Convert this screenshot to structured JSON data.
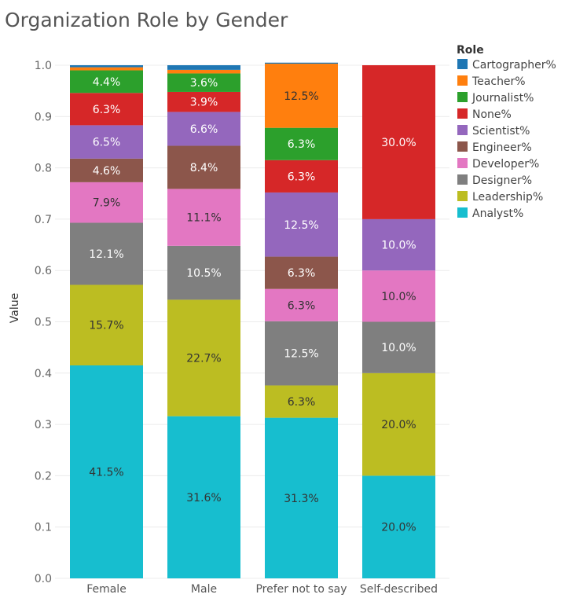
{
  "chart_data": {
    "type": "bar",
    "stacked": true,
    "title": "Organization Role by Gender",
    "xlabel": "",
    "ylabel": "Value",
    "ylim": [
      0,
      1
    ],
    "yticks": [
      "0.0",
      "0.1",
      "0.2",
      "0.3",
      "0.4",
      "0.5",
      "0.6",
      "0.7",
      "0.8",
      "0.9",
      "1.0"
    ],
    "categories": [
      "Female",
      "Male",
      "Prefer not to say",
      "Self-described"
    ],
    "legend_title": "Role",
    "legend_position": "right",
    "legend_items": [
      "Cartographer%",
      "Teacher%",
      "Journalist%",
      "None%",
      "Scientist%",
      "Engineer%",
      "Developer%",
      "Designer%",
      "Leadership%",
      "Analyst%"
    ],
    "series": [
      {
        "name": "Analyst%",
        "color": "#17becf",
        "label_color": "#333333",
        "values": [
          0.415,
          0.316,
          0.313,
          0.2
        ],
        "labels": [
          "41.5%",
          "31.6%",
          "31.3%",
          "20.0%"
        ]
      },
      {
        "name": "Leadership%",
        "color": "#bcbd22",
        "label_color": "#333333",
        "values": [
          0.157,
          0.227,
          0.063,
          0.2
        ],
        "labels": [
          "15.7%",
          "22.7%",
          "6.3%",
          "20.0%"
        ]
      },
      {
        "name": "Designer%",
        "color": "#7f7f7f",
        "label_color": "#ffffff",
        "values": [
          0.121,
          0.105,
          0.125,
          0.1
        ],
        "labels": [
          "12.1%",
          "10.5%",
          "12.5%",
          "10.0%"
        ]
      },
      {
        "name": "Developer%",
        "color": "#e377c2",
        "label_color": "#333333",
        "values": [
          0.079,
          0.111,
          0.063,
          0.1
        ],
        "labels": [
          "7.9%",
          "11.1%",
          "6.3%",
          "10.0%"
        ]
      },
      {
        "name": "Engineer%",
        "color": "#8c564b",
        "label_color": "#ffffff",
        "values": [
          0.046,
          0.084,
          0.063,
          0.0
        ],
        "labels": [
          "4.6%",
          "8.4%",
          "6.3%",
          ""
        ]
      },
      {
        "name": "Scientist%",
        "color": "#9467bd",
        "label_color": "#ffffff",
        "values": [
          0.065,
          0.066,
          0.125,
          0.1
        ],
        "labels": [
          "6.5%",
          "6.6%",
          "12.5%",
          "10.0%"
        ]
      },
      {
        "name": "None%",
        "color": "#d62728",
        "label_color": "#ffffff",
        "values": [
          0.063,
          0.039,
          0.063,
          0.3
        ],
        "labels": [
          "6.3%",
          "3.9%",
          "6.3%",
          "30.0%"
        ]
      },
      {
        "name": "Journalist%",
        "color": "#2ca02c",
        "label_color": "#ffffff",
        "values": [
          0.044,
          0.036,
          0.063,
          0.0
        ],
        "labels": [
          "4.4%",
          "3.6%",
          "6.3%",
          ""
        ]
      },
      {
        "name": "Teacher%",
        "color": "#ff7f0e",
        "label_color": "#333333",
        "values": [
          0.006,
          0.007,
          0.125,
          0.0
        ],
        "labels": [
          "",
          "",
          "12.5%",
          ""
        ]
      },
      {
        "name": "Cartographer%",
        "color": "#1f77b4",
        "label_color": "#ffffff",
        "values": [
          0.004,
          0.009,
          0.002,
          0.0
        ],
        "labels": [
          "",
          "",
          "",
          ""
        ]
      }
    ],
    "grid": true
  }
}
